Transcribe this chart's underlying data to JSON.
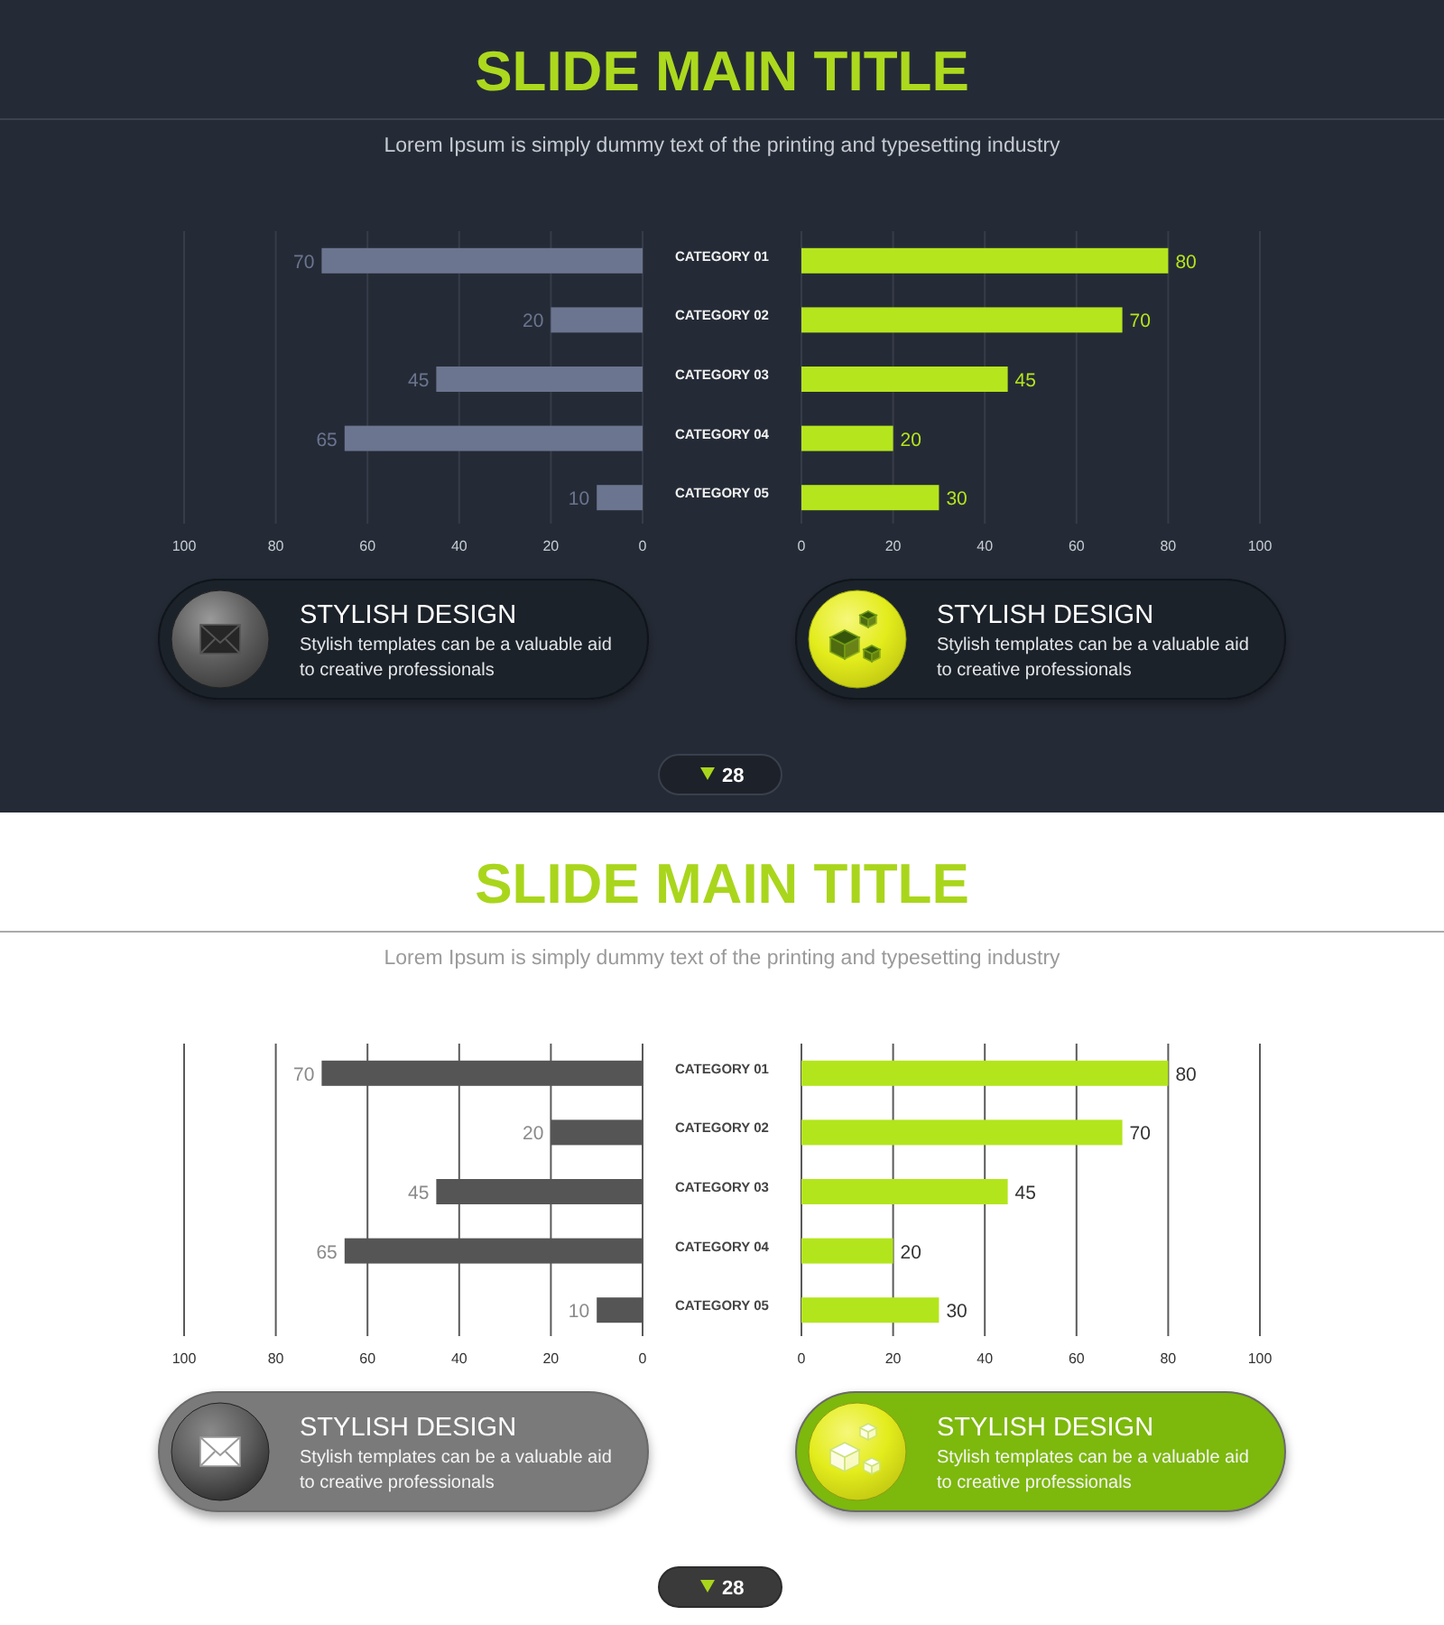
{
  "chart_data": [
    {
      "type": "bar",
      "orientation": "horizontal",
      "title": "SLIDE MAIN TITLE",
      "subtitle": "Lorem Ipsum is simply dummy text of the printing and typesetting industry",
      "categories": [
        null,
        null,
        null,
        null,
        null
      ],
      "values": [
        70,
        20,
        45,
        65,
        10
      ],
      "color": "#6b7590",
      "xlim": [
        100,
        0
      ],
      "xticks": [
        100,
        80,
        60,
        40,
        20,
        0
      ],
      "grid": "x",
      "data_labels": true
    },
    {
      "type": "bar",
      "orientation": "horizontal",
      "categories": [
        "CATEGORY 01",
        "CATEGORY 02",
        "CATEGORY 03",
        "CATEGORY 04",
        "CATEGORY 05"
      ],
      "values": [
        80,
        70,
        45,
        20,
        30
      ],
      "color": "#b5e61d",
      "xlim": [
        0,
        100
      ],
      "xticks": [
        0,
        20,
        40,
        60,
        80,
        100
      ],
      "grid": "x",
      "data_labels": true
    },
    {
      "type": "other",
      "title": "STYLISH DESIGN",
      "annotations": [
        "Stylish templates can be a valuable aid to creative professionals"
      ]
    },
    {
      "type": "other",
      "title": "STYLISH DESIGN",
      "annotations": [
        "Stylish templates can be a valuable aid to creative professionals"
      ]
    },
    {
      "type": "other",
      "annotations": [
        "28"
      ]
    },
    {
      "type": "bar",
      "orientation": "horizontal",
      "title": "SLIDE MAIN TITLE",
      "subtitle": "Lorem Ipsum is simply dummy text of the printing and typesetting industry",
      "categories": [
        null,
        null,
        null,
        null,
        null
      ],
      "values": [
        70,
        20,
        45,
        65,
        10
      ],
      "color": "#555555",
      "xlim": [
        100,
        0
      ],
      "xticks": [
        100,
        80,
        60,
        40,
        20,
        0
      ],
      "grid": "x",
      "data_labels": true
    },
    {
      "type": "bar",
      "orientation": "horizontal",
      "categories": [
        "CATEGORY 01",
        "CATEGORY 02",
        "CATEGORY 03",
        "CATEGORY 04",
        "CATEGORY 05"
      ],
      "values": [
        80,
        70,
        45,
        20,
        30
      ],
      "color": "#b3e51c",
      "xlim": [
        0,
        100
      ],
      "xticks": [
        0,
        20,
        40,
        60,
        80,
        100
      ],
      "grid": "x",
      "data_labels": true
    },
    {
      "type": "other",
      "title": "STYLISH DESIGN",
      "annotations": [
        "Stylish templates can be a valuable aid to creative professionals"
      ]
    },
    {
      "type": "other",
      "title": "STYLISH DESIGN",
      "annotations": [
        "Stylish templates can be a valuable aid to creative professionals"
      ]
    },
    {
      "type": "other",
      "annotations": [
        "28"
      ]
    }
  ]
}
